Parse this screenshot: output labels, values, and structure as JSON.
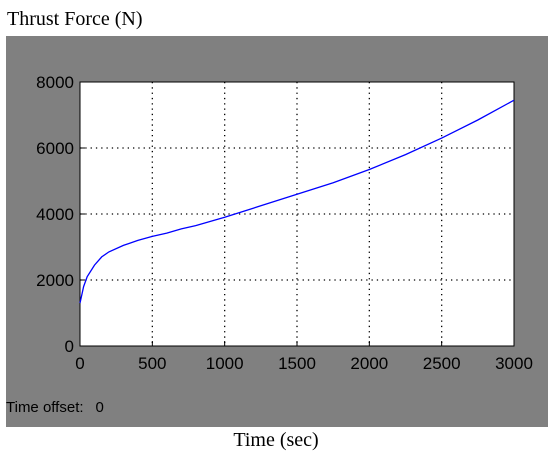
{
  "title": "Thrust Force (N)",
  "time_offset": {
    "label": "Time offset:",
    "value": "0"
  },
  "x_caption": "Time (sec)",
  "colors": {
    "background": "#808080",
    "axes": "#ffffff",
    "line": "#0000ff"
  },
  "chart_data": {
    "type": "line",
    "title": "Thrust Force (N)",
    "xlabel": "Time (sec)",
    "ylabel": "",
    "xlim": [
      0,
      3000
    ],
    "ylim": [
      0,
      8000
    ],
    "grid": true,
    "xticks": [
      "0",
      "500",
      "1000",
      "1500",
      "2000",
      "2500",
      "3000"
    ],
    "yticks": [
      "0",
      "2000",
      "4000",
      "6000",
      "8000"
    ],
    "series": [
      {
        "x": [
          0,
          25,
          50,
          100,
          150,
          200,
          300,
          400,
          500,
          600,
          700,
          800,
          1000,
          1250,
          1500,
          1750,
          2000,
          2250,
          2500,
          2750,
          3000
        ],
        "y": [
          1300,
          1800,
          2100,
          2450,
          2700,
          2850,
          3050,
          3200,
          3320,
          3420,
          3550,
          3650,
          3900,
          4250,
          4600,
          4950,
          5350,
          5800,
          6300,
          6850,
          7450
        ]
      }
    ]
  }
}
